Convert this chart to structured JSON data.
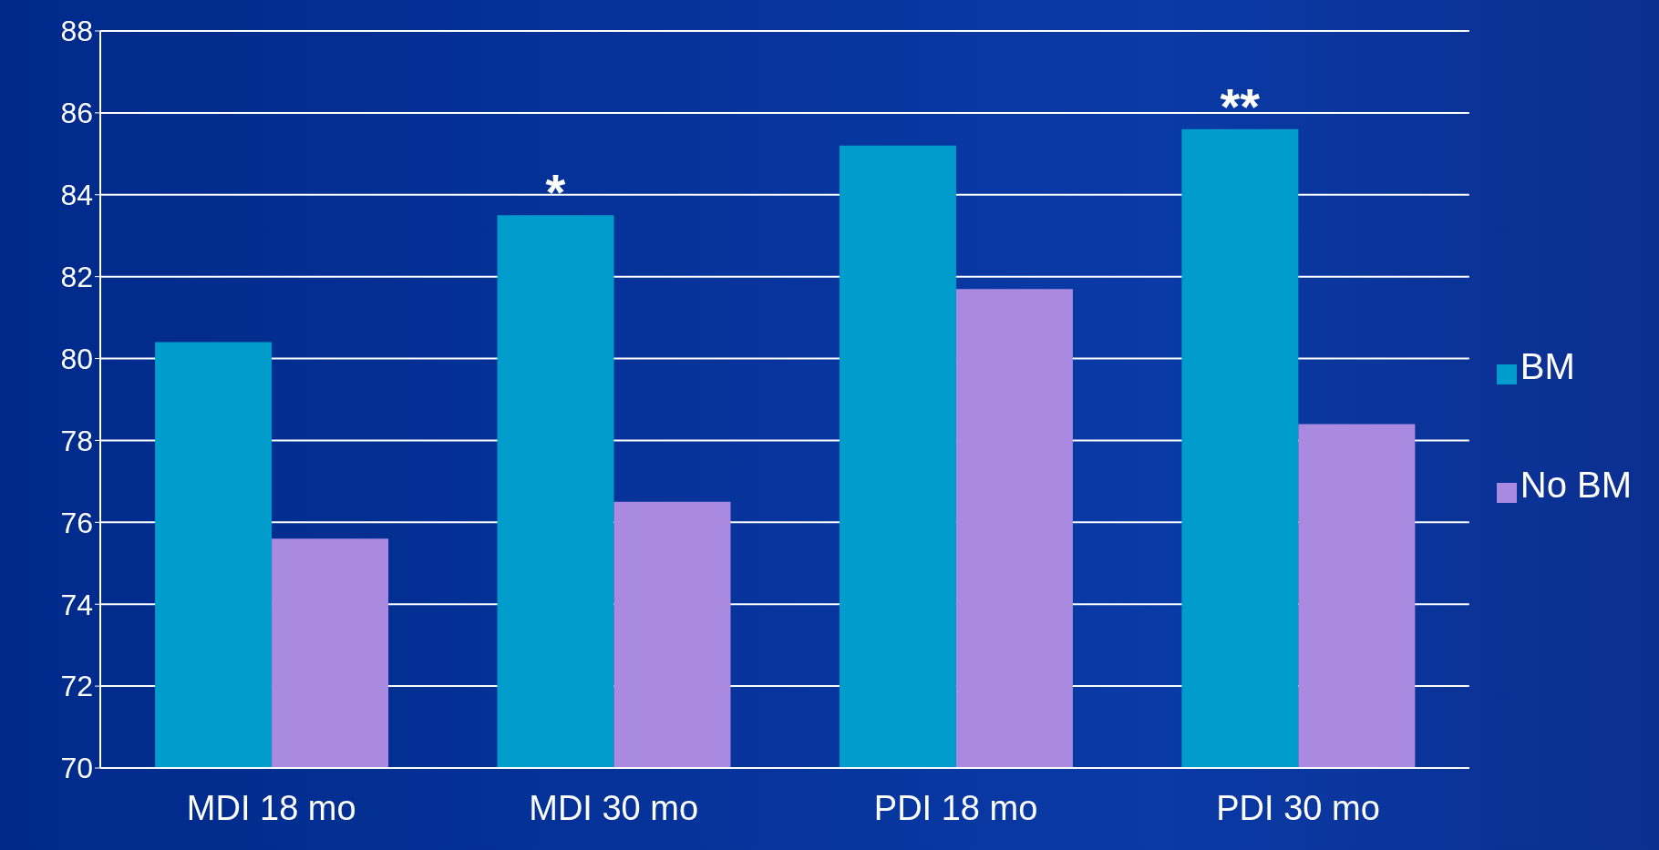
{
  "chart_data": {
    "type": "bar",
    "categories": [
      "MDI 18 mo",
      "MDI 30 mo",
      "PDI 18 mo",
      "PDI 30 mo"
    ],
    "series": [
      {
        "name": "BM",
        "color": "#009ccc",
        "values": [
          80.4,
          83.5,
          85.2,
          85.6
        ]
      },
      {
        "name": "No BM",
        "color": "#a98ae0",
        "values": [
          75.6,
          76.5,
          81.7,
          78.4
        ]
      }
    ],
    "ylim": [
      70,
      88
    ],
    "yticks": [
      70,
      72,
      74,
      76,
      78,
      80,
      82,
      84,
      86,
      88
    ],
    "grid": "y",
    "legend": "right",
    "annotations": [
      {
        "text": "*",
        "x": "MDI 30 mo",
        "y": 83.5
      },
      {
        "text": "**",
        "x": "PDI 30 mo",
        "y": 85.6
      }
    ]
  }
}
